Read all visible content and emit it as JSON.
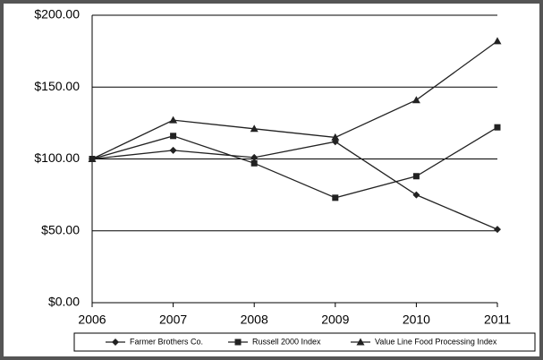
{
  "chart_data": {
    "type": "line",
    "categories": [
      "2006",
      "2007",
      "2008",
      "2009",
      "2010",
      "2011"
    ],
    "series": [
      {
        "name": "Farmer Brothers Co.",
        "color": "#222222",
        "marker": "diamond",
        "values": [
          100,
          106,
          101,
          112,
          75,
          51
        ]
      },
      {
        "name": "Russell 2000 Index",
        "color": "#222222",
        "marker": "square",
        "values": [
          100,
          116,
          97,
          73,
          88,
          122
        ]
      },
      {
        "name": "Value Line Food Processing Index",
        "color": "#222222",
        "marker": "triangle",
        "values": [
          100,
          127,
          121,
          115,
          141,
          182
        ]
      }
    ],
    "ylim": [
      0,
      200
    ],
    "yticks": [
      {
        "value": 0,
        "label": "$0.00"
      },
      {
        "value": 50,
        "label": "$50.00"
      },
      {
        "value": 100,
        "label": "$100.00"
      },
      {
        "value": 150,
        "label": "$150.00"
      },
      {
        "value": 200,
        "label": "$200.00"
      }
    ],
    "grid": true
  }
}
